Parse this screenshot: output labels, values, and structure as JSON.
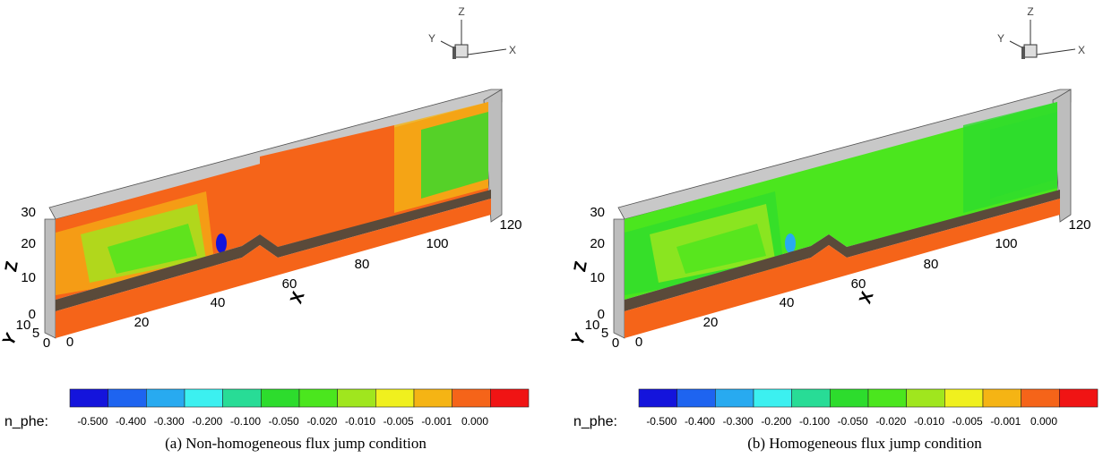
{
  "panels": [
    {
      "caption": "(a) Non-homogeneous flux jump condition",
      "colorbar": {
        "label": "n_phe:",
        "levels": [
          "-0.500",
          "-0.400",
          "-0.300",
          "-0.200",
          "-0.100",
          "-0.050",
          "-0.020",
          "-0.010",
          "-0.005",
          "-0.001",
          "0.000"
        ],
        "colors": [
          "#1414dc",
          "#1e64f0",
          "#28aaf0",
          "#3cf0f0",
          "#28dc96",
          "#2ddc2d",
          "#4be61e",
          "#a0e61e",
          "#f0f01e",
          "#f5b414",
          "#f56419",
          "#f01414"
        ]
      },
      "axes": {
        "z_label": "Z",
        "z_ticks": [
          "30",
          "20",
          "10",
          "0"
        ],
        "x_label": "X",
        "x_ticks": [
          "0",
          "20",
          "40",
          "60",
          "80",
          "100",
          "120"
        ],
        "y_label": "Y",
        "y_ticks": [
          "10",
          "5",
          "0"
        ]
      },
      "triad": {
        "z": "Z",
        "y": "Y",
        "x": "X"
      }
    },
    {
      "caption": "(b) Homogeneous flux jump condition",
      "colorbar": {
        "label": "n_phe:",
        "levels": [
          "-0.500",
          "-0.400",
          "-0.300",
          "-0.200",
          "-0.100",
          "-0.050",
          "-0.020",
          "-0.010",
          "-0.005",
          "-0.001",
          "0.000"
        ],
        "colors": [
          "#1414dc",
          "#1e64f0",
          "#28aaf0",
          "#3cf0f0",
          "#28dc96",
          "#2ddc2d",
          "#4be61e",
          "#a0e61e",
          "#f0f01e",
          "#f5b414",
          "#f56419",
          "#f01414"
        ]
      },
      "axes": {
        "z_label": "Z",
        "z_ticks": [
          "30",
          "20",
          "10",
          "0"
        ],
        "x_label": "X",
        "x_ticks": [
          "0",
          "20",
          "40",
          "60",
          "80",
          "100",
          "120"
        ],
        "y_label": "Y",
        "y_ticks": [
          "10",
          "5",
          "0"
        ]
      },
      "triad": {
        "z": "Z",
        "y": "Y",
        "x": "X"
      }
    }
  ]
}
